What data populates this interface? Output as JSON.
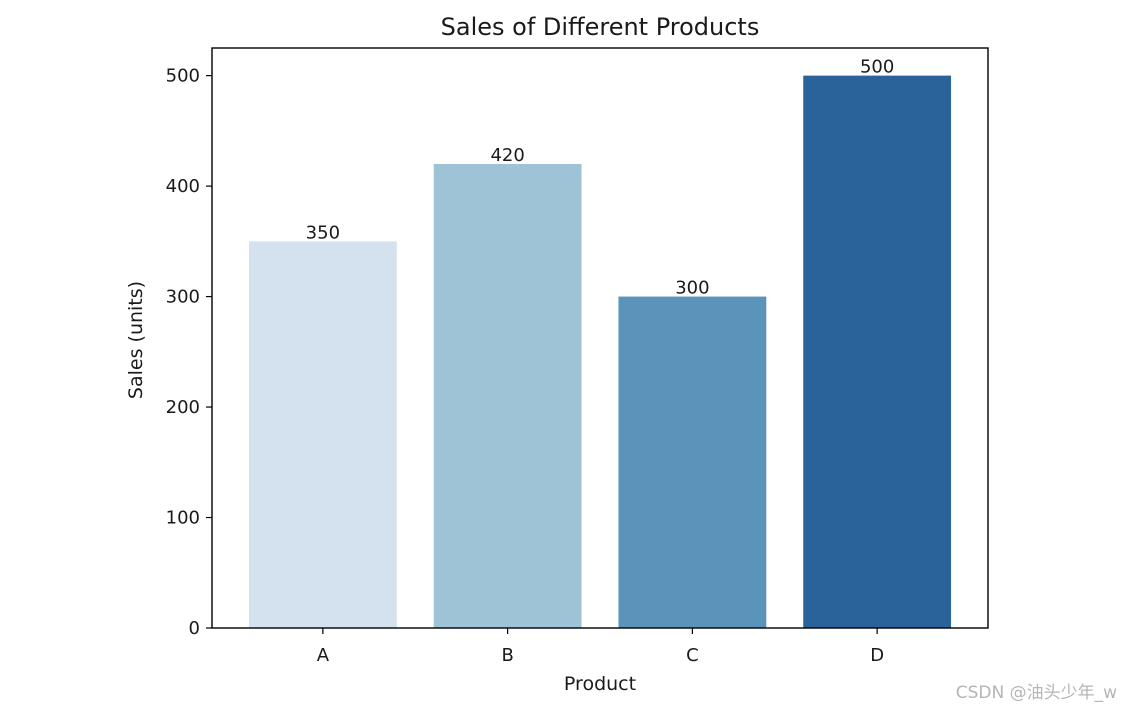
{
  "chart_data": {
    "type": "bar",
    "title": "Sales of Different Products",
    "xlabel": "Product",
    "ylabel": "Sales (units)",
    "categories": [
      "A",
      "B",
      "C",
      "D"
    ],
    "values": [
      350,
      420,
      300,
      500
    ],
    "data_labels": [
      "350",
      "420",
      "300",
      "500"
    ],
    "colors": [
      "#d4e2ef",
      "#9ec3d7",
      "#5a94ba",
      "#2a6399"
    ],
    "ylim": [
      0,
      525
    ],
    "yticks": [
      0,
      100,
      200,
      300,
      400,
      500
    ],
    "grid": false,
    "legend": false
  },
  "watermark": "CSDN @油头少年_w"
}
